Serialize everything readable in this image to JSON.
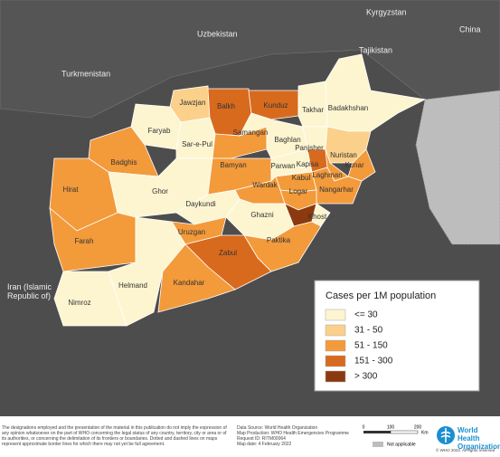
{
  "neighbors": [
    "Uzbekistan",
    "Kyrgyzstan",
    "China",
    "Tajikistan",
    "Turkmenistan",
    "Iran (Islamic Republic of)"
  ],
  "provinces": [
    {
      "name": "Jawzjan",
      "color": "#fbd08a"
    },
    {
      "name": "Balkh",
      "color": "#d86a1e"
    },
    {
      "name": "Kunduz",
      "color": "#d86a1e"
    },
    {
      "name": "Takhar",
      "color": "#fdf5d0"
    },
    {
      "name": "Badakhshan",
      "color": "#fdf5d0"
    },
    {
      "name": "Faryab",
      "color": "#fdf5d0"
    },
    {
      "name": "Sar-e-Pul",
      "color": "#fdf5d0"
    },
    {
      "name": "Samangan",
      "color": "#f39a3b"
    },
    {
      "name": "Baghlan",
      "color": "#fdf5d0"
    },
    {
      "name": "Panjsher",
      "color": "#fdf5d0"
    },
    {
      "name": "Nuristan",
      "color": "#fbd08a"
    },
    {
      "name": "Kunar",
      "color": "#f39a3b"
    },
    {
      "name": "Badghis",
      "color": "#f39a3b"
    },
    {
      "name": "Hirat",
      "color": "#f39a3b"
    },
    {
      "name": "Ghor",
      "color": "#fdf5d0"
    },
    {
      "name": "Bamyan",
      "color": "#f39a3b"
    },
    {
      "name": "Parwan",
      "color": "#fdf5d0"
    },
    {
      "name": "Kapisa",
      "color": "#d86a1e"
    },
    {
      "name": "Laghman",
      "color": "#f39a3b"
    },
    {
      "name": "Kabul",
      "color": "#f39a3b"
    },
    {
      "name": "Nangarhar",
      "color": "#f39a3b"
    },
    {
      "name": "Wardak",
      "color": "#f39a3b"
    },
    {
      "name": "Logar",
      "color": "#f39a3b"
    },
    {
      "name": "Daykundi",
      "color": "#fdf5d0"
    },
    {
      "name": "Ghazni",
      "color": "#fdf5d0"
    },
    {
      "name": null,
      "color": "#8b3a0f"
    },
    {
      "name": "Khost",
      "color": "#fdf5d0"
    },
    {
      "name": "Paktika",
      "color": "#f39a3b"
    },
    {
      "name": "Uruzgan",
      "color": "#f39a3b"
    },
    {
      "name": "Zabul",
      "color": "#d86a1e"
    },
    {
      "name": "Farah",
      "color": "#f39a3b"
    },
    {
      "name": "Helmand",
      "color": "#fdf5d0"
    },
    {
      "name": "Kandahar",
      "color": "#f39a3b"
    },
    {
      "name": "Nimroz",
      "color": "#fdf5d0"
    }
  ],
  "legend": {
    "title": "Cases per 1M population",
    "classes": [
      {
        "label": "<= 30",
        "color": "#fdf5d0"
      },
      {
        "label": "31 - 50",
        "color": "#fbd08a"
      },
      {
        "label": "51 - 150",
        "color": "#f39a3b"
      },
      {
        "label": "151 - 300",
        "color": "#d86a1e"
      },
      {
        "label": "> 300",
        "color": "#8b3a0f"
      }
    ]
  },
  "footer": {
    "disclaimer": "The designations employed and the presentation of the material in this publication do not imply the expression of any opinion whatsoever on the part of WHO concerning the legal status of any country, territory, city or area or of its authorities, or concerning the delimitation of its frontiers or boundaries. Dotted and dashed lines on maps represent approximate border lines for which there may not yet be full agreement.",
    "source": [
      "Data Source: World Health Organization",
      "Map Production: WHO Health Emergencies Programme",
      "Request ID: RITM00064",
      "Map date: 4 February 2022"
    ],
    "scale": [
      "0",
      "100",
      "200",
      "Km"
    ],
    "not_applicable": "Not applicable",
    "logo": "World Health Organization",
    "copyright": "© WHO 2022. All rights reserved"
  }
}
